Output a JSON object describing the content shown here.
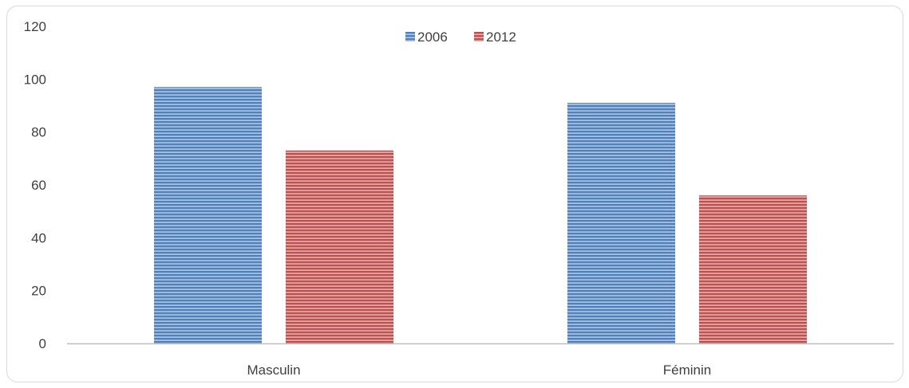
{
  "chart_data": {
    "type": "bar",
    "categories": [
      "Masculin",
      "Féminin"
    ],
    "series": [
      {
        "name": "2006",
        "values": [
          97,
          91
        ],
        "color": "#4f81bd"
      },
      {
        "name": "2012",
        "values": [
          73,
          56
        ],
        "color": "#c0504d"
      }
    ],
    "ylim": [
      0,
      120
    ],
    "yticks": [
      0,
      20,
      40,
      60,
      80,
      100,
      120
    ],
    "grid": false,
    "legend_position": "top-center",
    "bar_pattern": "horizontal-stripes"
  }
}
